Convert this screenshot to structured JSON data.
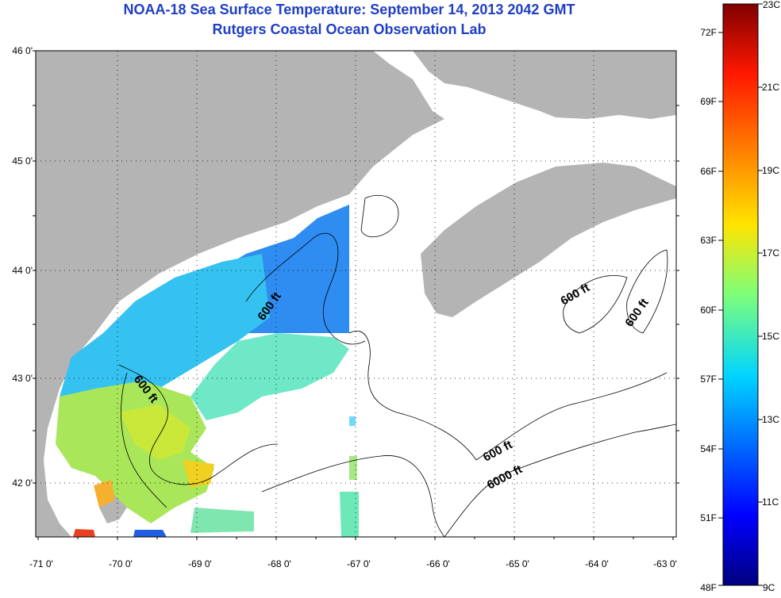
{
  "header": {
    "title": "NOAA-18 Sea Surface Temperature:  September 14, 2013 2042 GMT",
    "subtitle": "Rutgers Coastal Ocean Observation Lab"
  },
  "map": {
    "lon_labels": [
      "-71 0'",
      "-70 0'",
      "-69 0'",
      "-68 0'",
      "-67 0'",
      "-66 0'",
      "-65 0'",
      "-64 0'",
      "-63 0'"
    ],
    "lat_labels": [
      "46 0'",
      "45 0'",
      "44 0'",
      "43 0'",
      "42 0'"
    ],
    "contour_labels": [
      {
        "text": "600 ft",
        "id": "maine-upper"
      },
      {
        "text": "600 ft",
        "id": "maine-lower"
      },
      {
        "text": "600 ft",
        "id": "scotian-1"
      },
      {
        "text": "600 ft",
        "id": "scotian-2"
      },
      {
        "text": "600 ft",
        "id": "slope-600"
      },
      {
        "text": "6000 ft",
        "id": "slope-6000"
      }
    ],
    "colors": {
      "land": "#b4b4b4",
      "water": "#ffffff",
      "grid": "#000000",
      "title": "#1f3fc4"
    }
  },
  "colorbar": {
    "fahrenheit_labels": [
      "72F",
      "69F",
      "66F",
      "63F",
      "60F",
      "57F",
      "54F",
      "51F",
      "48F"
    ],
    "celsius_labels": [
      "23C",
      "21C",
      "19C",
      "17C",
      "15C",
      "13C",
      "11C",
      "9C"
    ],
    "range_c": [
      9,
      23
    ],
    "range_f": [
      48,
      73
    ]
  }
}
